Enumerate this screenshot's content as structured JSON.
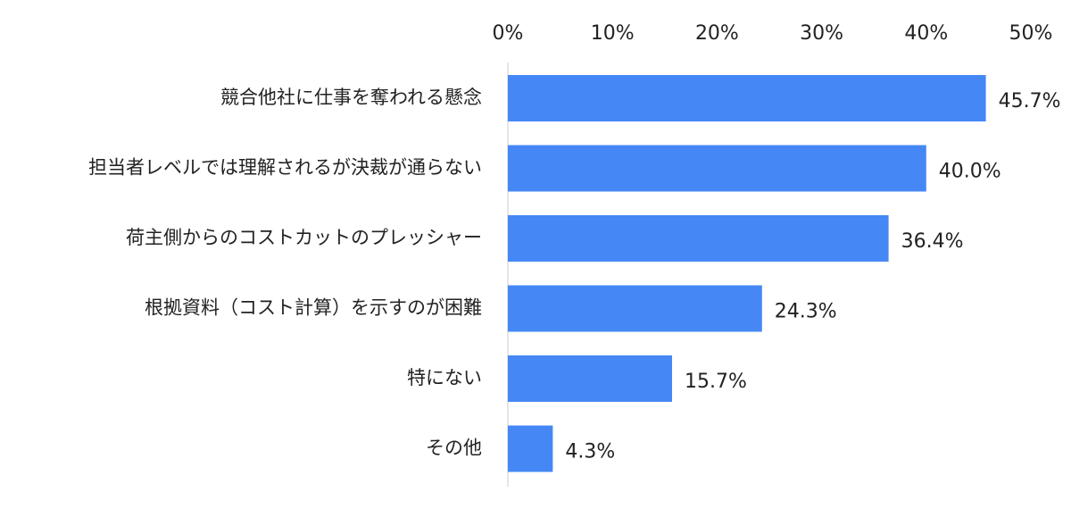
{
  "chart_data": {
    "type": "bar",
    "orientation": "horizontal",
    "categories": [
      "競合他社に仕事を奪われる懸念",
      "担当者レベルでは理解されるが決裁が通らない",
      "荷主側からのコストカットのプレッシャー",
      "根拠資料（コスト計算）を示すのが困難",
      "特にない",
      "その他"
    ],
    "values": [
      45.7,
      40.0,
      36.4,
      24.3,
      15.7,
      4.3
    ],
    "value_labels": [
      "45.7%",
      "40.0%",
      "36.4%",
      "24.3%",
      "15.7%",
      "4.3%"
    ],
    "x_ticks": [
      0,
      10,
      20,
      30,
      40,
      50
    ],
    "x_tick_labels": [
      "0%",
      "10%",
      "20%",
      "30%",
      "40%",
      "50%"
    ],
    "xlim": [
      0,
      50
    ],
    "axis_position": "top",
    "grid": false,
    "legend": "none",
    "bar_color": "#4588F5",
    "text_color": "#222222",
    "axis_color": "#DDDDDD"
  }
}
